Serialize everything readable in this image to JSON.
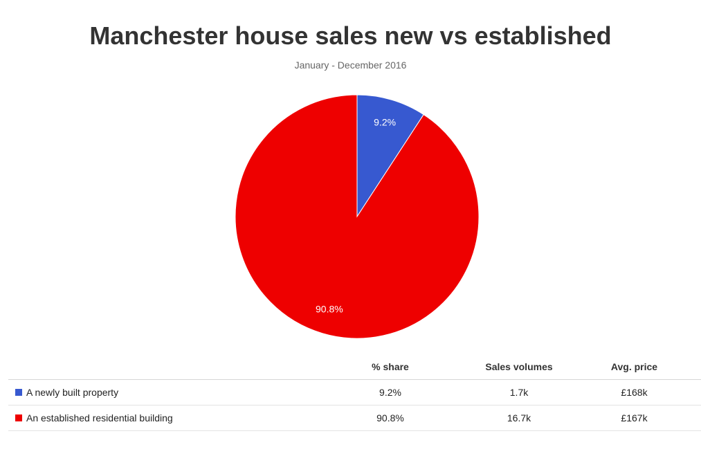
{
  "chart_data": {
    "type": "pie",
    "title": "Manchester house sales new vs established",
    "subtitle": "January - December 2016",
    "slices": [
      {
        "name": "A newly built property",
        "value": 9.2,
        "label": "9.2%",
        "color": "#3759d0"
      },
      {
        "name": "An established residential building",
        "value": 90.8,
        "label": "90.8%",
        "color": "#ee0000"
      }
    ]
  },
  "table": {
    "headers": [
      "",
      "% share",
      "Sales volumes",
      "Avg. price"
    ],
    "rows": [
      {
        "name": "A newly built property",
        "color": "#3759d0",
        "share": "9.2%",
        "volume": "1.7k",
        "price": "£168k"
      },
      {
        "name": "An established residential building",
        "color": "#ee0000",
        "share": "90.8%",
        "volume": "16.7k",
        "price": "£167k"
      }
    ]
  }
}
